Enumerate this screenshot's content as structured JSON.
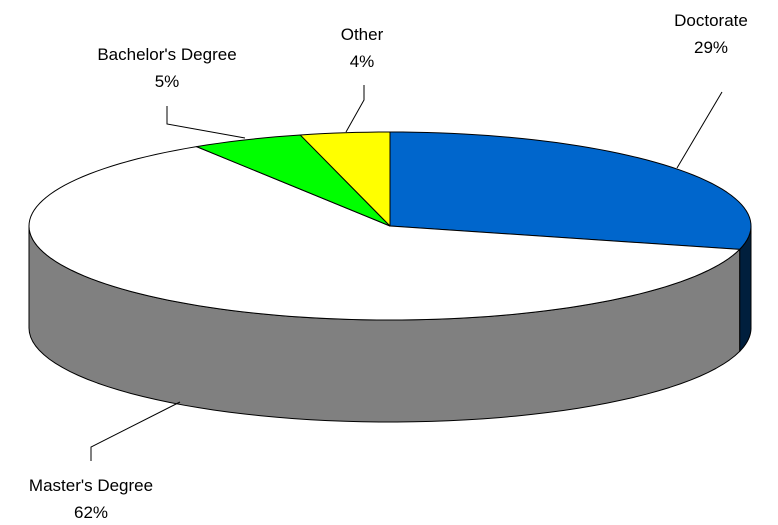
{
  "chart_data": {
    "type": "pie",
    "style": "3d",
    "slices": [
      {
        "name": "Doctorate",
        "value": 29,
        "label": "29%",
        "color": "#0066CC"
      },
      {
        "name": "Master's Degree",
        "value": 62,
        "label": "62%",
        "color": "#FFFFFF"
      },
      {
        "name": "Bachelor's Degree",
        "value": 5,
        "label": "5%",
        "color": "#00FF00"
      },
      {
        "name": "Other",
        "value": 4,
        "label": "4%",
        "color": "#FFFF00"
      }
    ]
  }
}
